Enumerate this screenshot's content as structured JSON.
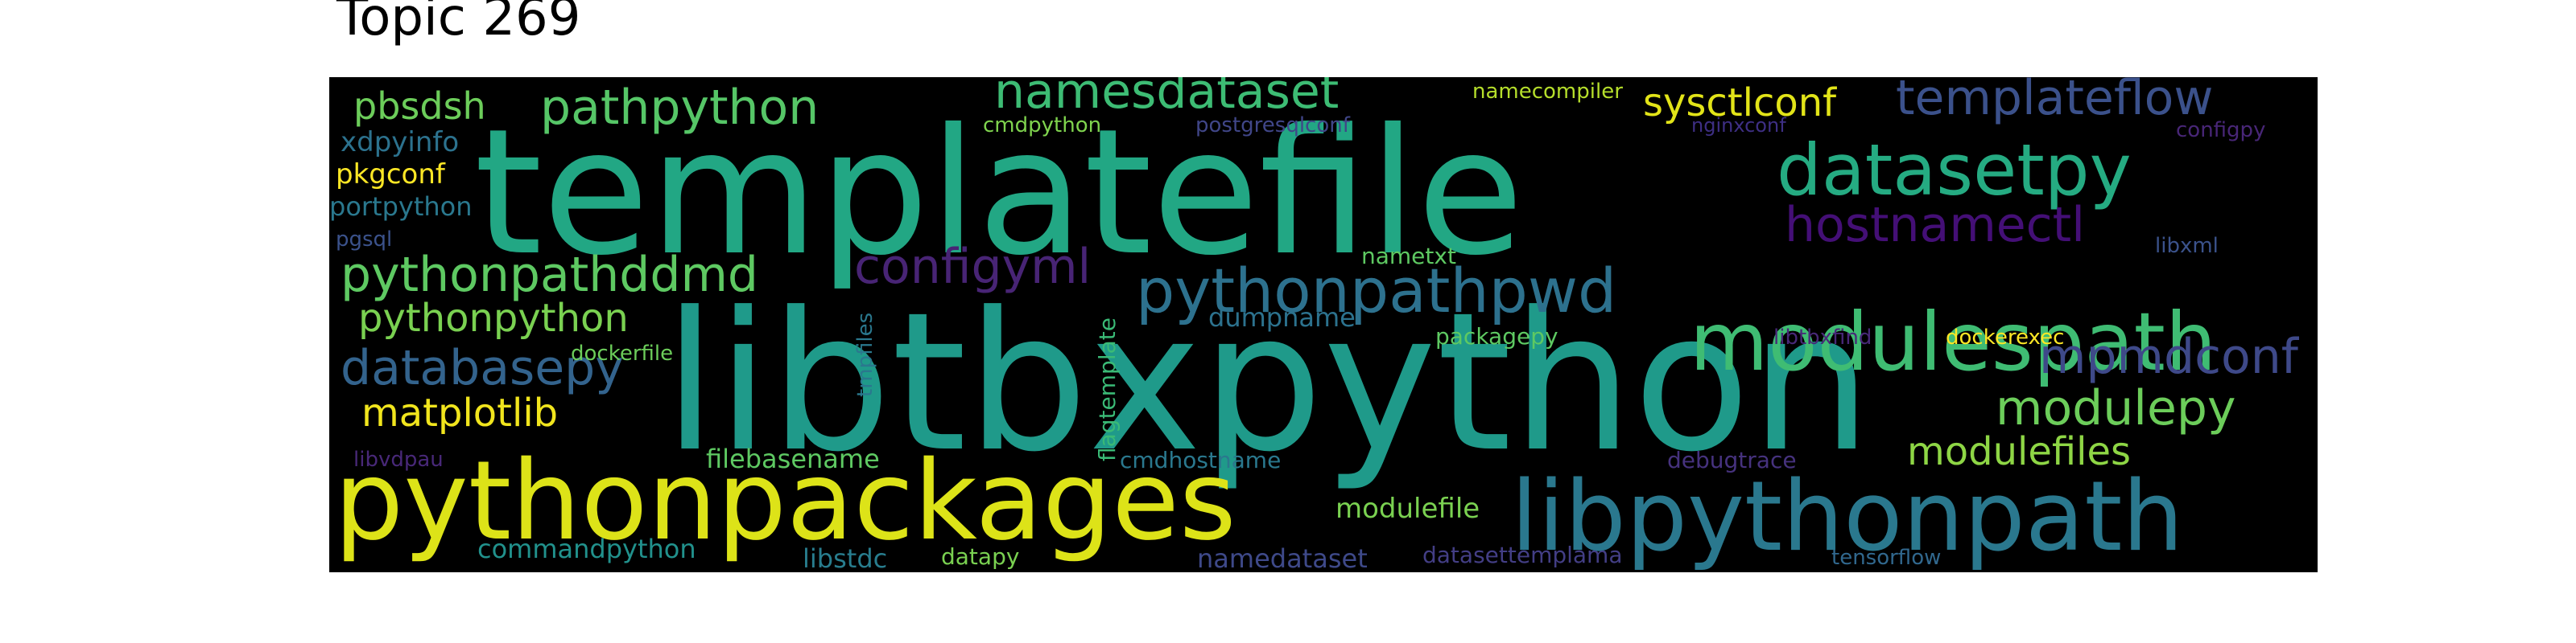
{
  "title": "Topic 269",
  "words": [
    {
      "text": "templatefile",
      "color": "#22a784"
    },
    {
      "text": "libtbxpython",
      "color": "#1f9a8a"
    },
    {
      "text": "pythonpackages",
      "color": "#dde318"
    },
    {
      "text": "libpythonpath",
      "color": "#2a788e"
    },
    {
      "text": "modulespath",
      "color": "#3fbc73"
    },
    {
      "text": "datasetpy",
      "color": "#25ab82"
    },
    {
      "text": "pythonpathpwd",
      "color": "#2d718e"
    },
    {
      "text": "namesdataset",
      "color": "#3dbc74"
    },
    {
      "text": "pathpython",
      "color": "#56c667"
    },
    {
      "text": "templateflow",
      "color": "#3b518b"
    },
    {
      "text": "sysctlconf",
      "color": "#e2e418"
    },
    {
      "text": "hostnamectl",
      "color": "#440f76"
    },
    {
      "text": "configyml",
      "color": "#482475"
    },
    {
      "text": "pythonpathddmd",
      "color": "#5ec962"
    },
    {
      "text": "mpmdconf",
      "color": "#3e4989"
    },
    {
      "text": "modulepy",
      "color": "#6ccd5a"
    },
    {
      "text": "databasepy",
      "color": "#33638d"
    },
    {
      "text": "pythonpython",
      "color": "#7ad151"
    },
    {
      "text": "matplotlib",
      "color": "#f1e51d"
    },
    {
      "text": "modulefiles",
      "color": "#8ed645"
    },
    {
      "text": "pbsdsh",
      "color": "#6ccd5a"
    },
    {
      "text": "xdpyinfo",
      "color": "#2c728e"
    },
    {
      "text": "pkgconf",
      "color": "#fde725"
    },
    {
      "text": "portpython",
      "color": "#2a788e"
    },
    {
      "text": "pgsql",
      "color": "#3b528b"
    },
    {
      "text": "namecompiler",
      "color": "#b5de2b"
    },
    {
      "text": "cmdpython",
      "color": "#7fd34e"
    },
    {
      "text": "postgresqlconf",
      "color": "#404688"
    },
    {
      "text": "nginxconf",
      "color": "#3e2f84"
    },
    {
      "text": "configpy",
      "color": "#482677"
    },
    {
      "text": "libxml",
      "color": "#3b528b"
    },
    {
      "text": "nametxt",
      "color": "#5ec962"
    },
    {
      "text": "dumpname",
      "color": "#2c728e"
    },
    {
      "text": "packagepy",
      "color": "#5ec962"
    },
    {
      "text": "libtbxfind",
      "color": "#482878"
    },
    {
      "text": "dockerexec",
      "color": "#fde725"
    },
    {
      "text": "dockerfile",
      "color": "#6ccd5a"
    },
    {
      "text": "tmpfiles",
      "color": "#2a788e"
    },
    {
      "text": "flagtemplate",
      "color": "#3aba76"
    },
    {
      "text": "filebasename",
      "color": "#5ec962"
    },
    {
      "text": "cmdhostname",
      "color": "#2a788e"
    },
    {
      "text": "libvdpau",
      "color": "#482878"
    },
    {
      "text": "debugtrace",
      "color": "#46327e"
    },
    {
      "text": "modulefile",
      "color": "#7ad151"
    },
    {
      "text": "commandpython",
      "color": "#21918c"
    },
    {
      "text": "libstdc",
      "color": "#287d8e"
    },
    {
      "text": "datapy",
      "color": "#7ad151"
    },
    {
      "text": "namedataset",
      "color": "#3e4989"
    },
    {
      "text": "datasettemplama",
      "color": "#433e85"
    },
    {
      "text": "tensorflow",
      "color": "#31688e"
    }
  ]
}
